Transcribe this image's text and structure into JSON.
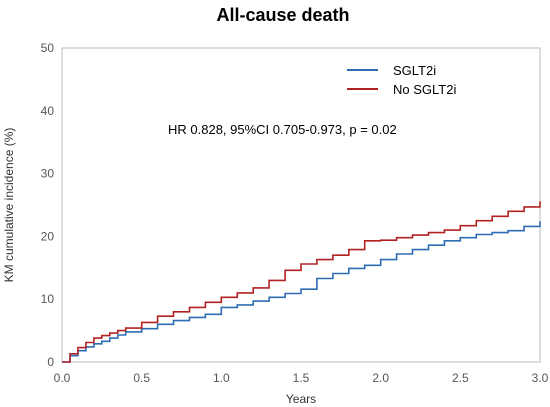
{
  "chart_data": {
    "type": "line",
    "title": "All-cause death",
    "xlabel": "Years",
    "ylabel": "KM cumulative incidence (%)",
    "xlim": [
      0,
      3
    ],
    "ylim": [
      0,
      50
    ],
    "x_ticks": [
      "0.0",
      "0.5",
      "1.0",
      "1.5",
      "2.0",
      "2.5",
      "3.0"
    ],
    "y_ticks": [
      "0",
      "10",
      "20",
      "30",
      "40",
      "50"
    ],
    "grid": false,
    "legend_position": "top-right",
    "annotation": "HR 0.828, 95%CI 0.705-0.973,  p = 0.02",
    "series": [
      {
        "name": "SGLT2i",
        "color": "#2e6db4",
        "x": [
          0,
          0.05,
          0.1,
          0.15,
          0.2,
          0.25,
          0.3,
          0.35,
          0.4,
          0.5,
          0.6,
          0.7,
          0.8,
          0.9,
          1.0,
          1.1,
          1.2,
          1.3,
          1.4,
          1.5,
          1.6,
          1.7,
          1.8,
          1.9,
          2.0,
          2.1,
          2.2,
          2.3,
          2.4,
          2.5,
          2.6,
          2.7,
          2.8,
          2.9,
          3.0
        ],
        "y": [
          0,
          1.0,
          1.8,
          2.4,
          2.9,
          3.3,
          3.8,
          4.3,
          4.8,
          5.3,
          6.0,
          6.6,
          7.1,
          7.6,
          8.7,
          9.1,
          9.7,
          10.3,
          10.9,
          11.6,
          13.3,
          14.1,
          14.9,
          15.4,
          16.3,
          17.2,
          17.9,
          18.6,
          19.3,
          19.8,
          20.3,
          20.6,
          20.9,
          21.6,
          22.4
        ]
      },
      {
        "name": "No SGLT2i",
        "color": "#b22222",
        "x": [
          0,
          0.05,
          0.1,
          0.15,
          0.2,
          0.25,
          0.3,
          0.35,
          0.4,
          0.5,
          0.6,
          0.7,
          0.8,
          0.9,
          1.0,
          1.1,
          1.2,
          1.3,
          1.4,
          1.5,
          1.6,
          1.7,
          1.8,
          1.9,
          2.0,
          2.1,
          2.2,
          2.3,
          2.4,
          2.5,
          2.6,
          2.7,
          2.8,
          2.9,
          3.0
        ],
        "y": [
          0,
          1.3,
          2.3,
          3.1,
          3.8,
          4.2,
          4.6,
          5.0,
          5.4,
          6.3,
          7.3,
          8.0,
          8.7,
          9.5,
          10.3,
          11.0,
          11.8,
          13.0,
          14.6,
          15.6,
          16.3,
          17.0,
          17.9,
          19.3,
          19.4,
          19.8,
          20.2,
          20.6,
          21.0,
          21.7,
          22.5,
          23.2,
          24.0,
          24.7,
          25.6
        ]
      }
    ]
  }
}
